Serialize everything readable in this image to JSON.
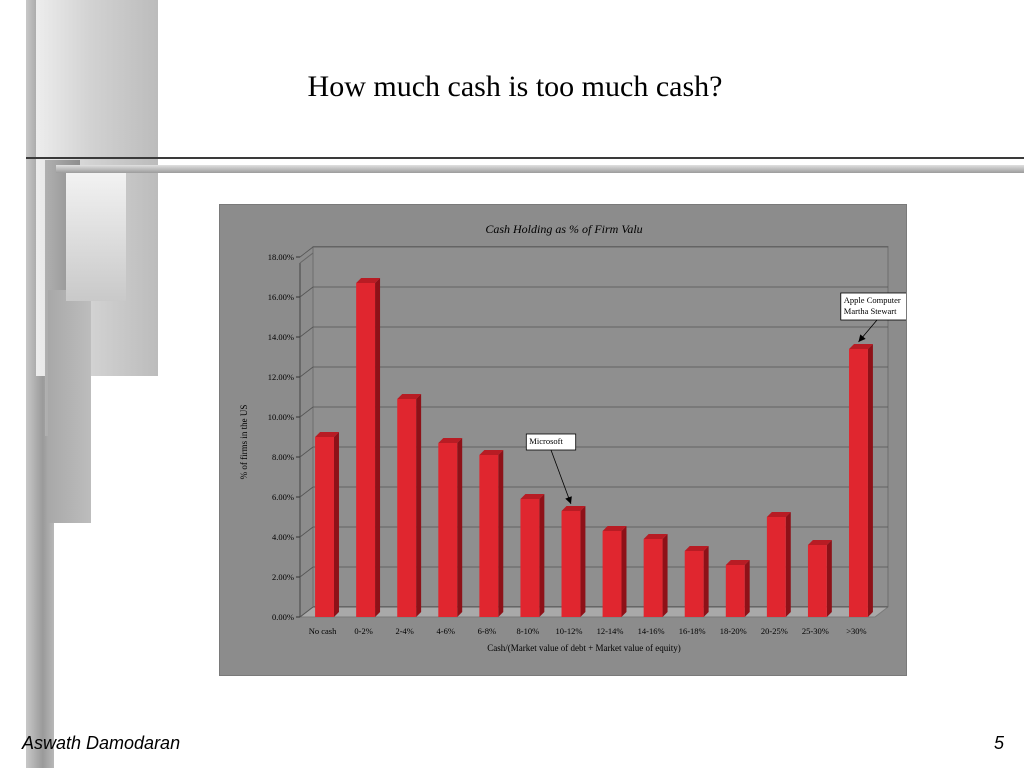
{
  "slide": {
    "title": "How much cash is too much cash?",
    "author": "Aswath Damodaran",
    "page_number": "5"
  },
  "chart_data": {
    "type": "bar",
    "title": "Cash Holding as % of Firm Valu",
    "xlabel": "Cash/(Market value of debt + Market value of equity)",
    "ylabel": "% of firms in the US",
    "categories": [
      "No cash",
      "0-2%",
      "2-4%",
      "4-6%",
      "6-8%",
      "8-10%",
      "10-12%",
      "12-14%",
      "14-16%",
      "16-18%",
      "18-20%",
      "20-25%",
      "25-30%",
      ">30%"
    ],
    "values": [
      9.0,
      16.7,
      10.9,
      8.7,
      8.1,
      5.9,
      5.3,
      4.3,
      3.9,
      3.3,
      2.6,
      5.0,
      3.6,
      13.4
    ],
    "ylim": [
      0,
      18
    ],
    "yticks": [
      "0.00%",
      "2.00%",
      "4.00%",
      "6.00%",
      "8.00%",
      "10.00%",
      "12.00%",
      "14.00%",
      "16.00%",
      "18.00%"
    ],
    "grid": true,
    "bar_color": "#e0262f",
    "annotations": [
      {
        "lines": [
          "Microsoft"
        ],
        "category": "10-12%"
      },
      {
        "lines": [
          "Apple Computer",
          "Martha Stewart"
        ],
        "category": ">30%"
      }
    ]
  }
}
